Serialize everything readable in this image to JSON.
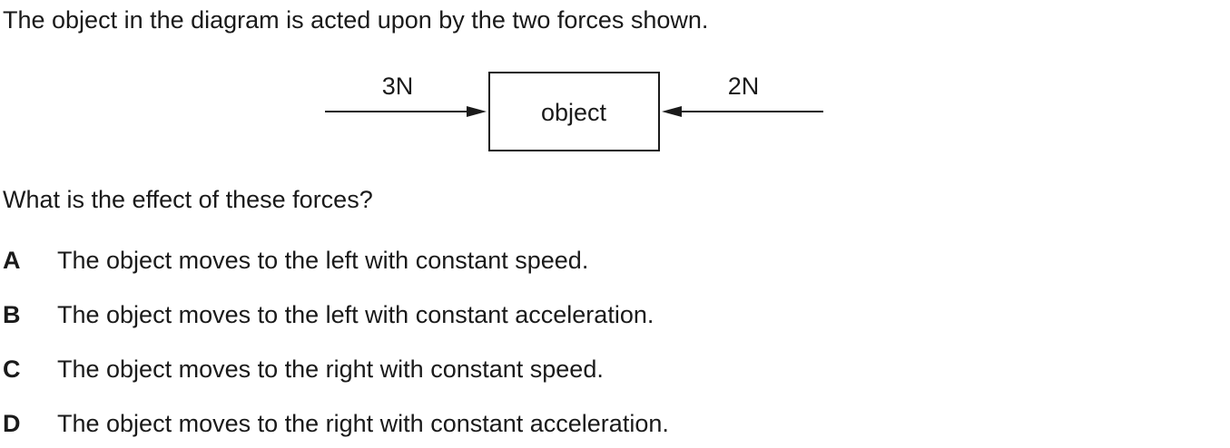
{
  "intro": "The object in the diagram is acted upon by the two forces shown.",
  "diagram": {
    "object_label": "object",
    "left_force_label": "3N",
    "right_force_label": "2N"
  },
  "question": "What is the effect of these forces?",
  "options": [
    {
      "letter": "A",
      "text": "The object moves to the left with constant speed."
    },
    {
      "letter": "B",
      "text": "The object moves to the left with constant acceleration."
    },
    {
      "letter": "C",
      "text": "The object moves to the right with constant speed."
    },
    {
      "letter": "D",
      "text": "The object moves to the right with constant acceleration."
    }
  ]
}
